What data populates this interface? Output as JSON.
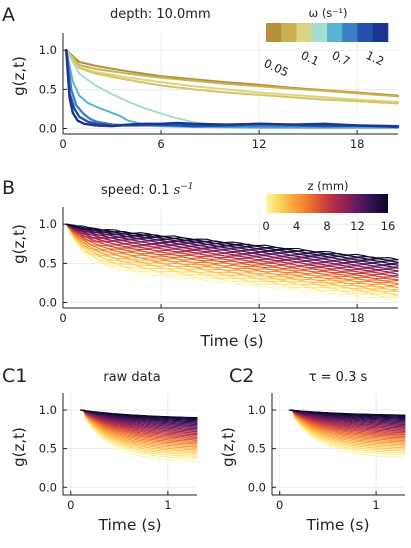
{
  "colors": {
    "omega": [
      "#b5903a",
      "#c9b14f",
      "#dcd485",
      "#a7dcd2",
      "#5ab4d0",
      "#3d7fc4",
      "#2350ad",
      "#1b3593"
    ],
    "z_scale": [
      "#fff6a8",
      "#fdd35a",
      "#fba63c",
      "#f07d2e",
      "#d94f36",
      "#b32c4a",
      "#86205a",
      "#55185e",
      "#2a0f4d",
      "#0c0724"
    ]
  },
  "chart_data": [
    {
      "id": "A",
      "panel_label": "A",
      "type": "line",
      "annotation": "depth: 10.0mm",
      "ylabel": "g(z,t)",
      "xlabel": "",
      "xlim": [
        0,
        20.5
      ],
      "ylim": [
        -0.07,
        1.22
      ],
      "xticks": [
        0,
        6,
        12,
        18
      ],
      "yticks": [
        0.0,
        0.5,
        1.0
      ],
      "ytick_labels": [
        "0.0",
        "0.5",
        "1.0"
      ],
      "grid": true,
      "colorbar": {
        "title": "ω (s⁻¹)",
        "placement": "top-right",
        "tick_labels": [
          "0.05",
          "0.1",
          "0.7",
          "1.2"
        ]
      },
      "series": [
        {
          "color": "#b5903a",
          "x": [
            0.2,
            1,
            2,
            4,
            6,
            8,
            10,
            12,
            14,
            16,
            18,
            20.5
          ],
          "values": [
            1.0,
            0.85,
            0.8,
            0.73,
            0.67,
            0.63,
            0.59,
            0.56,
            0.52,
            0.49,
            0.46,
            0.42
          ]
        },
        {
          "color": "#c9b14f",
          "x": [
            0.2,
            1,
            2,
            4,
            6,
            8,
            10,
            12,
            14,
            16,
            18,
            20.5
          ],
          "values": [
            1.0,
            0.81,
            0.76,
            0.7,
            0.65,
            0.61,
            0.57,
            0.54,
            0.51,
            0.48,
            0.45,
            0.41
          ]
        },
        {
          "color": "#dcd485",
          "x": [
            0.2,
            1,
            2,
            4,
            6,
            8,
            10,
            12,
            14,
            16,
            18,
            20.5
          ],
          "values": [
            1.0,
            0.78,
            0.72,
            0.65,
            0.59,
            0.54,
            0.5,
            0.46,
            0.43,
            0.4,
            0.37,
            0.34
          ]
        },
        {
          "color": "#d4c463",
          "x": [
            0.2,
            1,
            2,
            4,
            6,
            8,
            10,
            12,
            14,
            16,
            18,
            20.5
          ],
          "values": [
            1.0,
            0.77,
            0.7,
            0.62,
            0.55,
            0.5,
            0.46,
            0.43,
            0.4,
            0.37,
            0.35,
            0.32
          ]
        },
        {
          "color": "#a7dcd2",
          "x": [
            0.2,
            1,
            2,
            3,
            4,
            5,
            6,
            7,
            8,
            9,
            10,
            12,
            15,
            20.5
          ],
          "values": [
            1.0,
            0.7,
            0.55,
            0.44,
            0.34,
            0.26,
            0.19,
            0.13,
            0.08,
            0.05,
            0.03,
            0.02,
            0.01,
            0.01
          ]
        },
        {
          "color": "#5ab4d0",
          "x": [
            0.2,
            0.6,
            1,
            1.5,
            2,
            2.5,
            3,
            3.5,
            4,
            5,
            6,
            8,
            12,
            20.5
          ],
          "values": [
            1.0,
            0.6,
            0.42,
            0.33,
            0.28,
            0.24,
            0.2,
            0.16,
            0.1,
            0.05,
            0.03,
            0.02,
            0.01,
            0.01
          ]
        },
        {
          "color": "#3d7fc4",
          "x": [
            0.2,
            0.5,
            0.8,
            1.2,
            1.6,
            2,
            3,
            4,
            6,
            8,
            10,
            14,
            18,
            20.5
          ],
          "values": [
            1.0,
            0.5,
            0.3,
            0.2,
            0.13,
            0.09,
            0.05,
            0.04,
            0.04,
            0.04,
            0.03,
            0.03,
            0.03,
            0.03
          ]
        },
        {
          "color": "#2350ad",
          "x": [
            0.2,
            0.4,
            0.7,
            1,
            1.5,
            2,
            3,
            4,
            6,
            8,
            10,
            12,
            14,
            16,
            18,
            20.5
          ],
          "values": [
            1.0,
            0.45,
            0.25,
            0.15,
            0.09,
            0.06,
            0.04,
            0.04,
            0.05,
            0.03,
            0.04,
            0.06,
            0.05,
            0.03,
            0.04,
            0.02
          ]
        },
        {
          "color": "#1b3593",
          "x": [
            0.2,
            0.4,
            0.6,
            0.9,
            1.3,
            2,
            3,
            4,
            5,
            6,
            7,
            8,
            10,
            12,
            14,
            16,
            18,
            20.5
          ],
          "values": [
            1.0,
            0.4,
            0.2,
            0.1,
            0.06,
            0.04,
            0.03,
            0.05,
            0.06,
            0.06,
            0.07,
            0.06,
            0.05,
            0.06,
            0.05,
            0.06,
            0.04,
            0.03
          ]
        }
      ]
    },
    {
      "id": "B",
      "panel_label": "B",
      "type": "line",
      "annotation_prefix": "speed: 0.1 ",
      "annotation_unit": "s",
      "annotation_unit_exp": "−1",
      "ylabel": "g(z,t)",
      "xlabel": "Time (s)",
      "xlim": [
        0,
        20.5
      ],
      "ylim": [
        -0.07,
        1.22
      ],
      "xticks": [
        0,
        6,
        12,
        18
      ],
      "yticks": [
        0.0,
        0.5,
        1.0
      ],
      "ytick_labels": [
        "0.0",
        "0.5",
        "1.0"
      ],
      "grid": true,
      "colorbar": {
        "title": "z (mm)",
        "placement": "top-right",
        "tick_labels": [
          "0",
          "4",
          "8",
          "12",
          "16"
        ],
        "range": [
          0,
          16
        ]
      },
      "family": {
        "depths": [
          0,
          0.5,
          1,
          1.5,
          2,
          2.5,
          3,
          3.5,
          4,
          4.5,
          5,
          5.5,
          6,
          6.5,
          7,
          7.5,
          8,
          8.5,
          9,
          9.5,
          10,
          10.5,
          11,
          11.5,
          12,
          12.5,
          13,
          13.5,
          14,
          14.5,
          15,
          15.5,
          16
        ],
        "x_start": 0.2,
        "x_end": 20.5,
        "y_end_shallow": 0.03,
        "y_end_deep": 0.55,
        "initial_drop_shallow": 0.55,
        "initial_drop_deep": 0.05
      }
    },
    {
      "id": "C1",
      "panel_label": "C1",
      "type": "line",
      "annotation": "raw data",
      "ylabel": "g(z,t)",
      "xlabel": "Time (s)",
      "xlim": [
        -0.08,
        1.3
      ],
      "ylim": [
        -0.1,
        1.22
      ],
      "xticks": [
        0,
        1
      ],
      "yticks": [
        0.0,
        0.5,
        1.0
      ],
      "ytick_labels": [
        "0.0",
        "0.5",
        "1.0"
      ],
      "grid": true,
      "family": {
        "depths": [
          0,
          0.5,
          1,
          1.5,
          2,
          2.5,
          3,
          3.5,
          4,
          4.5,
          5,
          5.5,
          6,
          6.5,
          7,
          7.5,
          8,
          8.5,
          9,
          9.5,
          10,
          10.5,
          11,
          11.5,
          12,
          12.5,
          13,
          13.5,
          14,
          14.5,
          15,
          15.5,
          16
        ],
        "x_start": 0.1,
        "x_end": 1.3,
        "y_end_shallow": 0.33,
        "y_end_deep": 0.88
      }
    },
    {
      "id": "C2",
      "panel_label": "C2",
      "type": "line",
      "annotation": "τ = 0.3 s",
      "ylabel": "g(z,t)",
      "xlabel": "Time (s)",
      "xlim": [
        -0.08,
        1.3
      ],
      "ylim": [
        -0.1,
        1.22
      ],
      "xticks": [
        0,
        1
      ],
      "yticks": [
        0.0,
        0.5,
        1.0
      ],
      "ytick_labels": [
        "0.0",
        "0.5",
        "1.0"
      ],
      "grid": true,
      "family": {
        "depths": [
          0,
          0.5,
          1,
          1.5,
          2,
          2.5,
          3,
          3.5,
          4,
          4.5,
          5,
          5.5,
          6,
          6.5,
          7,
          7.5,
          8,
          8.5,
          9,
          9.5,
          10,
          10.5,
          11,
          11.5,
          12,
          12.5,
          13,
          13.5,
          14,
          14.5,
          15,
          15.5,
          16
        ],
        "x_start": 0.1,
        "x_end": 1.3,
        "y_end_shallow": 0.38,
        "y_end_deep": 0.92
      }
    }
  ]
}
